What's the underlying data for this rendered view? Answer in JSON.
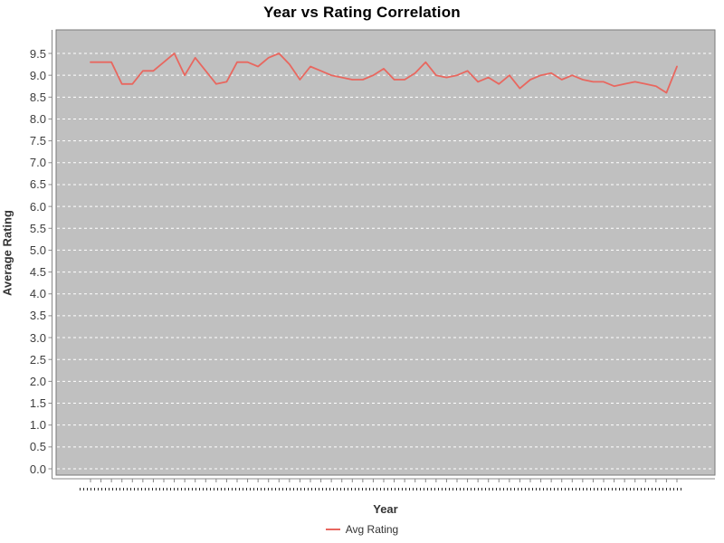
{
  "title": "Year vs Rating Correlation",
  "x_axis": {
    "label": "Year",
    "tick_labels_legible": false,
    "tick_labels_note": "rendered as tiny unreadable dots"
  },
  "y_axis": {
    "label": "Average Rating",
    "min": 0.0,
    "max": 9.5,
    "step": 0.5
  },
  "legend": {
    "items": [
      {
        "label": "Avg Rating",
        "color": "#e8675f"
      }
    ]
  },
  "colors": {
    "plot_background": "#c0c0c0",
    "plot_border": "#7a7a7a",
    "gridline": "#ffffff",
    "axis_line": "#888888",
    "series": "#e8675f",
    "tick_label": "#3d3d3d",
    "title": "#000000"
  },
  "chart_data": {
    "type": "line",
    "title": "Year vs Rating Correlation",
    "xlabel": "Year",
    "ylabel": "Average Rating",
    "ylim": [
      0.0,
      9.5
    ],
    "y_tick_step": 0.5,
    "grid": true,
    "grid_style": "white dashed on gray",
    "legend_position": "bottom-center",
    "x_tick_labels": "illegible (many year categories rendered as dots)",
    "series": [
      {
        "name": "Avg Rating",
        "values": [
          9.3,
          9.3,
          9.3,
          8.8,
          8.8,
          9.1,
          9.1,
          9.3,
          9.5,
          9.0,
          9.4,
          9.1,
          8.8,
          8.85,
          9.3,
          9.3,
          9.2,
          9.4,
          9.5,
          9.25,
          8.9,
          9.2,
          9.1,
          9.0,
          8.95,
          8.9,
          8.9,
          9.0,
          9.15,
          8.9,
          8.9,
          9.05,
          9.3,
          9.0,
          8.95,
          9.0,
          9.1,
          8.85,
          8.95,
          8.8,
          9.0,
          8.7,
          8.9,
          9.0,
          9.05,
          8.9,
          9.0,
          8.9,
          8.85,
          8.85,
          8.75,
          8.8,
          8.85,
          8.8,
          8.75,
          8.6,
          9.2
        ]
      }
    ]
  }
}
